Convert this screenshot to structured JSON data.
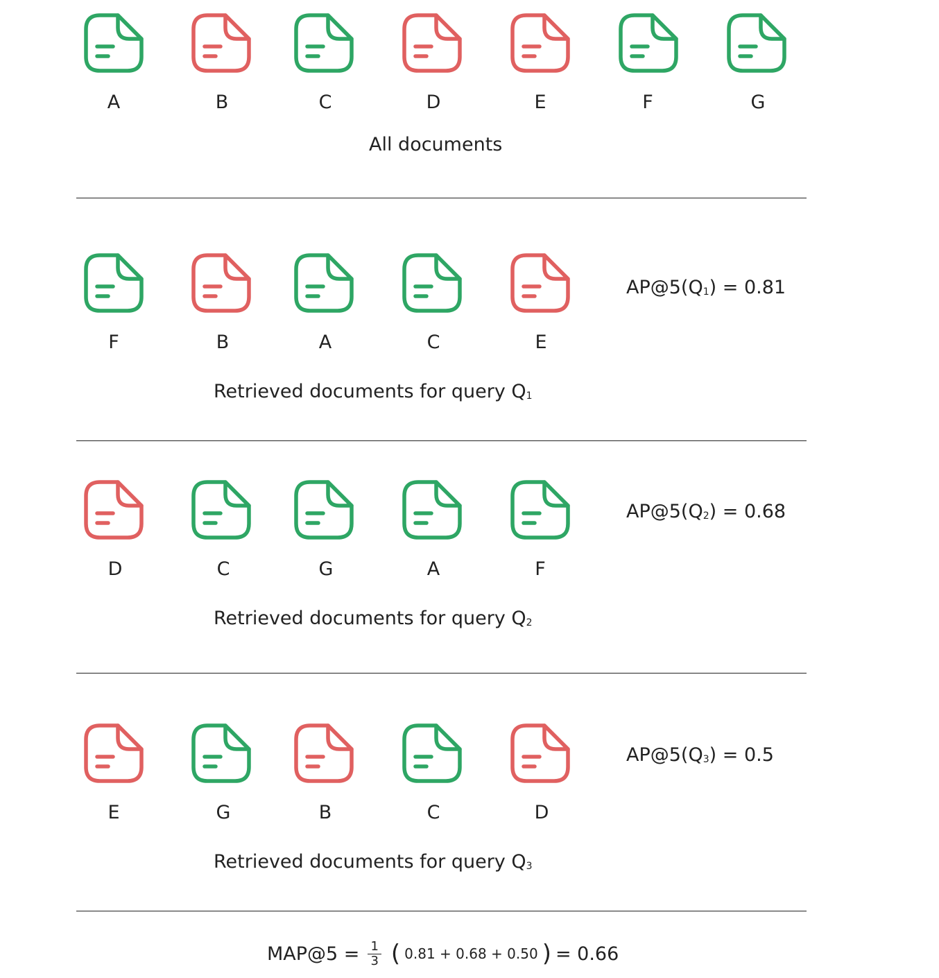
{
  "colors": {
    "relevant": "#2ea664",
    "irrelevant": "#e06060",
    "text": "#222222"
  },
  "icon": "document-icon",
  "all_documents": {
    "caption": "All documents",
    "docs": [
      {
        "label": "A",
        "relevant": true
      },
      {
        "label": "B",
        "relevant": false
      },
      {
        "label": "C",
        "relevant": true
      },
      {
        "label": "D",
        "relevant": false
      },
      {
        "label": "E",
        "relevant": false
      },
      {
        "label": "F",
        "relevant": true
      },
      {
        "label": "G",
        "relevant": true
      }
    ]
  },
  "queries": [
    {
      "caption": "Retrieved documents for query Q",
      "caption_sub": "1",
      "ap_label": "AP@5(Q",
      "ap_sub": "1",
      "ap_value": ") = 0.81",
      "docs": [
        {
          "label": "F",
          "relevant": true
        },
        {
          "label": "B",
          "relevant": false
        },
        {
          "label": "A",
          "relevant": true
        },
        {
          "label": "C",
          "relevant": true
        },
        {
          "label": "E",
          "relevant": false
        }
      ]
    },
    {
      "caption": "Retrieved documents for query Q",
      "caption_sub": "2",
      "ap_label": "AP@5(Q",
      "ap_sub": "2",
      "ap_value": ") = 0.68",
      "docs": [
        {
          "label": "D",
          "relevant": false
        },
        {
          "label": "C",
          "relevant": true
        },
        {
          "label": "G",
          "relevant": true
        },
        {
          "label": "A",
          "relevant": true
        },
        {
          "label": "F",
          "relevant": true
        }
      ]
    },
    {
      "caption": "Retrieved documents for query Q",
      "caption_sub": "3",
      "ap_label": "AP@5(Q",
      "ap_sub": "3",
      "ap_value": ") = 0.5",
      "docs": [
        {
          "label": "E",
          "relevant": false
        },
        {
          "label": "G",
          "relevant": true
        },
        {
          "label": "B",
          "relevant": false
        },
        {
          "label": "C",
          "relevant": true
        },
        {
          "label": "D",
          "relevant": false
        }
      ]
    }
  ],
  "map": {
    "lhs": "MAP@5 =",
    "numerator": "1",
    "denominator": "3",
    "open_paren": "(",
    "sum": "0.81 + 0.68 + 0.50",
    "close_paren": ")",
    "result": "= 0.66"
  }
}
